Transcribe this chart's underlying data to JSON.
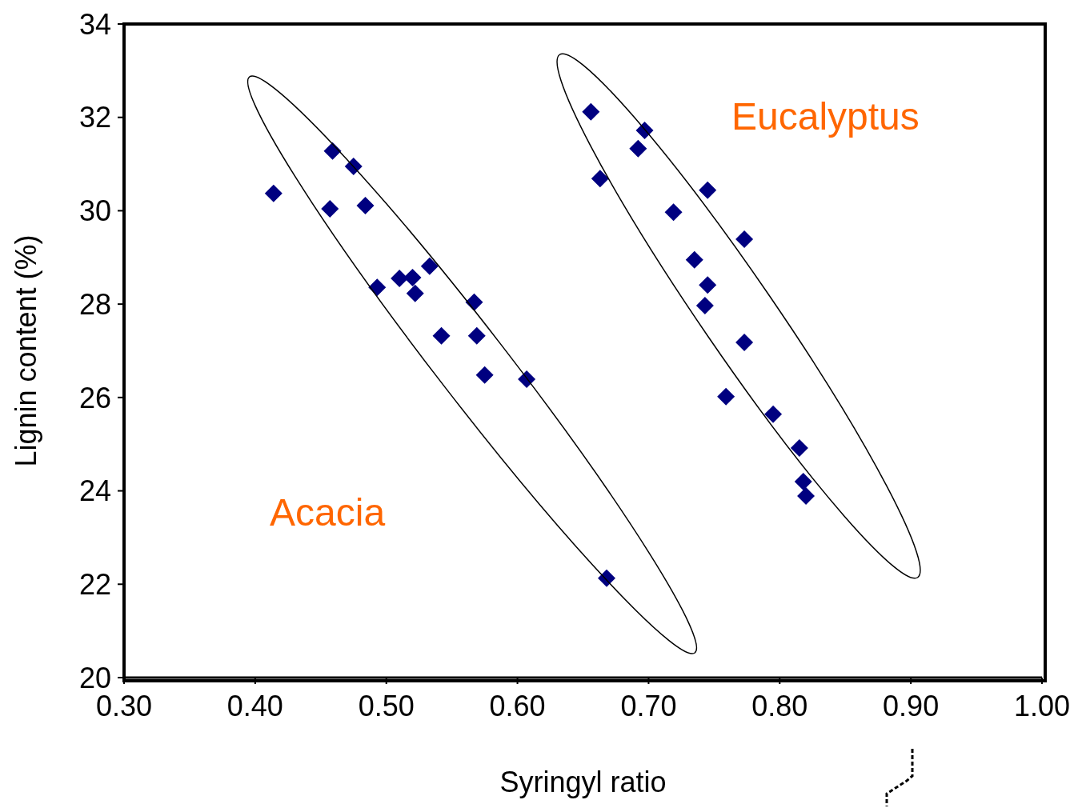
{
  "chart_data": {
    "type": "scatter",
    "xlabel": "Syringyl ratio",
    "ylabel": "Lignin content (%)",
    "x": [
      0.414,
      0.459,
      0.475,
      0.457,
      0.484,
      0.493,
      0.51,
      0.52,
      0.522,
      0.533,
      0.542,
      0.567,
      0.569,
      0.575,
      0.607,
      0.668,
      0.656,
      0.697,
      0.692,
      0.663,
      0.745,
      0.719,
      0.773,
      0.735,
      0.745,
      0.743,
      0.773,
      0.759,
      0.795,
      0.815,
      0.818,
      0.82
    ],
    "values": [
      30.37,
      31.28,
      30.95,
      30.04,
      30.11,
      28.36,
      28.55,
      28.57,
      28.23,
      28.81,
      27.32,
      28.04,
      27.32,
      26.48,
      26.39,
      22.13,
      32.12,
      31.72,
      31.33,
      30.69,
      30.44,
      29.97,
      29.39,
      28.95,
      28.41,
      27.97,
      27.18,
      26.02,
      25.64,
      24.92,
      24.2,
      23.89
    ],
    "color": "#000080",
    "marker": "diamond",
    "xlim": [
      0.3,
      1.0
    ],
    "xticks": [
      {
        "value": 0.3,
        "label": "0.30"
      },
      {
        "value": 0.4,
        "label": "0.40"
      },
      {
        "value": 0.5,
        "label": "0.50"
      },
      {
        "value": 0.6,
        "label": "0.60"
      },
      {
        "value": 0.7,
        "label": "0.70"
      },
      {
        "value": 0.8,
        "label": "0.80"
      },
      {
        "value": 0.9,
        "label": "0.90"
      },
      {
        "value": 1.0,
        "label": "1.00"
      }
    ],
    "ylim": [
      20,
      34
    ],
    "yticks": [
      20,
      22,
      24,
      26,
      28,
      30,
      32,
      34
    ],
    "annotations": [
      "Acacia",
      "Eucalyptus"
    ]
  }
}
